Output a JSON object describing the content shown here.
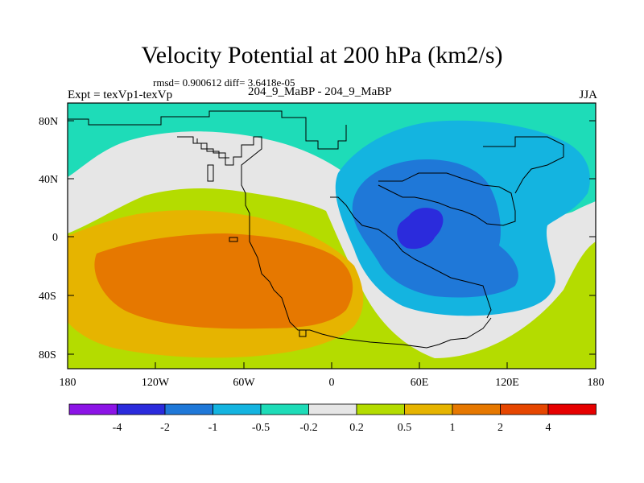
{
  "header": {
    "title": "Velocity Potential at 200 hPa (km2/s)",
    "stats": "rmsd= 0.900612 diff= 3.6418e-05",
    "expt": "Expt = texVp1-texVp",
    "cases": "204_9_MaBP - 204_9_MaBP",
    "season": "JJA"
  },
  "map": {
    "lat_ticks": [
      "80N",
      "40N",
      "0",
      "40S",
      "80S"
    ],
    "lon_ticks": [
      "180",
      "120W",
      "60W",
      "0",
      "60E",
      "120E",
      "180"
    ]
  },
  "colorbar": {
    "colors": [
      "#8c14e6",
      "#2b2bdc",
      "#1f78d8",
      "#14b4e0",
      "#1edcb8",
      "#e6e6e6",
      "#b4dc00",
      "#e6b400",
      "#e67800",
      "#e64600",
      "#e60000"
    ],
    "labels": [
      "-4",
      "-2",
      "-1",
      "-0.5",
      "-0.2",
      "0.2",
      "0.5",
      "1",
      "2",
      "4"
    ]
  }
}
